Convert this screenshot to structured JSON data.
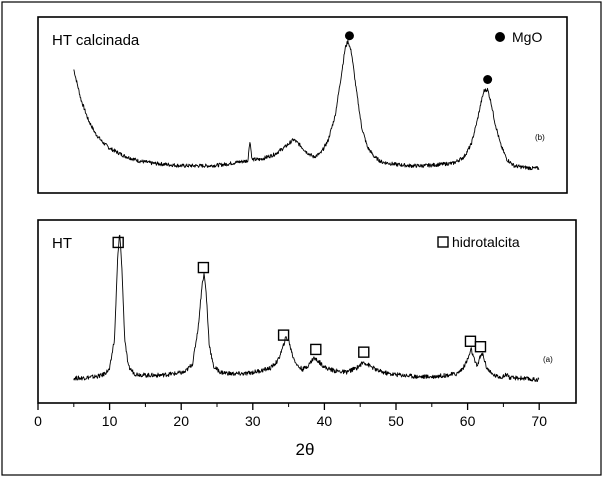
{
  "chart_data": {
    "type": "line",
    "xlabel": "2θ",
    "xlim": [
      0,
      75
    ],
    "x_ticks": [
      "0",
      "10",
      "20",
      "30",
      "40",
      "50",
      "60",
      "70"
    ],
    "panels": [
      {
        "label": "HT calcinada",
        "tag": "(b)",
        "legend": {
          "text": "MgO",
          "marker": "filled-circle",
          "placement": "top-right"
        },
        "series": [
          {
            "x": [
              5,
              5.5,
              6,
              7,
              8,
              9,
              10,
              12,
              14,
              16,
              18,
              20,
              22,
              24,
              26,
              28,
              29.3,
              29.6,
              29.9,
              31,
              33,
              34.5,
              35.7,
              36.5,
              37.5,
              38.5,
              39.5,
              40.5,
              41.5,
              42.3,
              42.9,
              43.3,
              43.8,
              44.4,
              45.2,
              46,
              47,
              48,
              50,
              52,
              54,
              56,
              58,
              59.5,
              60.5,
              61.3,
              61.9,
              62.3,
              62.8,
              63.3,
              63.8,
              64.6,
              65.5,
              66.5,
              67.5,
              69,
              70
            ],
            "y": [
              0.82,
              0.7,
              0.58,
              0.42,
              0.31,
              0.24,
              0.19,
              0.13,
              0.09,
              0.07,
              0.06,
              0.05,
              0.05,
              0.05,
              0.06,
              0.08,
              0.09,
              0.25,
              0.1,
              0.1,
              0.14,
              0.2,
              0.26,
              0.22,
              0.16,
              0.12,
              0.15,
              0.25,
              0.45,
              0.75,
              0.99,
              1.05,
              0.95,
              0.68,
              0.36,
              0.2,
              0.12,
              0.08,
              0.06,
              0.05,
              0.05,
              0.06,
              0.07,
              0.12,
              0.22,
              0.4,
              0.56,
              0.65,
              0.66,
              0.55,
              0.4,
              0.22,
              0.1,
              0.05,
              0.04,
              0.03,
              0.03
            ]
          }
        ],
        "peak_markers": [
          43.5,
          62.8
        ]
      },
      {
        "label": "HT",
        "tag": "(a)",
        "legend": {
          "text": "hidrotalcita",
          "marker": "open-square",
          "placement": "top-right"
        },
        "series": [
          {
            "x": [
              5,
              6,
              8,
              9,
              10,
              10.7,
              11.1,
              11.4,
              11.7,
              12.1,
              12.6,
              13.5,
              15,
              17,
              19,
              20.5,
              21.6,
              22.4,
              22.9,
              23.2,
              23.5,
              23.9,
              24.5,
              25.5,
              27,
              29,
              31,
              32.5,
              33.5,
              34.2,
              34.6,
              35,
              35.6,
              36.3,
              37,
              37.8,
              38.5,
              39.3,
              40.2,
              41.5,
              43,
              44.5,
              45.5,
              46.5,
              47.5,
              49,
              51,
              53,
              55,
              57,
              58.5,
              59.4,
              60.1,
              60.5,
              60.9,
              61.3,
              61.7,
              62.1,
              62.6,
              63.3,
              64.2,
              65,
              65.5,
              65.9,
              66.5,
              67.5,
              69,
              70
            ],
            "y": [
              0.02,
              0.02,
              0.03,
              0.04,
              0.08,
              0.3,
              0.82,
              1.02,
              0.8,
              0.3,
              0.1,
              0.05,
              0.04,
              0.04,
              0.05,
              0.06,
              0.12,
              0.38,
              0.66,
              0.74,
              0.6,
              0.26,
              0.1,
              0.06,
              0.05,
              0.05,
              0.07,
              0.09,
              0.14,
              0.23,
              0.3,
              0.28,
              0.17,
              0.1,
              0.08,
              0.11,
              0.16,
              0.13,
              0.09,
              0.07,
              0.06,
              0.09,
              0.13,
              0.1,
              0.07,
              0.05,
              0.04,
              0.03,
              0.03,
              0.04,
              0.05,
              0.09,
              0.16,
              0.22,
              0.15,
              0.1,
              0.16,
              0.19,
              0.1,
              0.05,
              0.03,
              0.03,
              0.05,
              0.02,
              0.02,
              0.02,
              0.01,
              0.01
            ]
          }
        ],
        "peak_markers": [
          11.2,
          23.1,
          34.3,
          38.8,
          45.5,
          60.4,
          61.8
        ]
      }
    ],
    "grid": false,
    "line_color": "#000000"
  }
}
